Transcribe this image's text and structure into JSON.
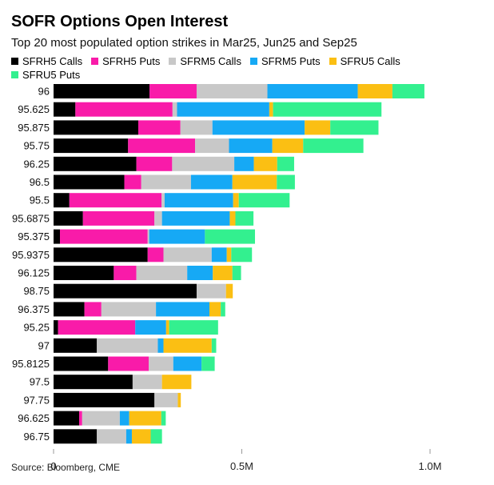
{
  "title": "SOFR Options Open Interest",
  "subtitle": "Top 20 most populated option strikes in Mar25, Jun25 and Sep25",
  "source": "Source: Bloomberg, CME",
  "chart_data": {
    "type": "bar",
    "orientation": "horizontal",
    "stacked": true,
    "legend_position": "top",
    "grid": false,
    "xlim": [
      0,
      1000000
    ],
    "x_ticks": [
      0,
      500000,
      1000000
    ],
    "x_tick_labels": [
      "0",
      "0.5M",
      "1.0M"
    ],
    "categories": [
      "96",
      "95.625",
      "95.875",
      "95.75",
      "96.25",
      "96.5",
      "95.5",
      "95.6875",
      "95.375",
      "95.9375",
      "96.125",
      "98.75",
      "96.375",
      "95.25",
      "97",
      "95.8125",
      "97.5",
      "97.75",
      "96.625",
      "96.75"
    ],
    "series": [
      {
        "name": "SFRH5 Calls",
        "color": "#000000",
        "values": [
          255000,
          58000,
          225000,
          198000,
          220000,
          188000,
          42000,
          78000,
          17000,
          250000,
          160000,
          380000,
          82000,
          12000,
          115000,
          145000,
          210000,
          268000,
          68000,
          115000
        ]
      },
      {
        "name": "SFRH5 Puts",
        "color": "#f91ba9",
        "values": [
          125000,
          258000,
          112000,
          178000,
          95000,
          45000,
          245000,
          190000,
          233000,
          42000,
          60000,
          0,
          45000,
          205000,
          0,
          108000,
          0,
          0,
          8000,
          0
        ]
      },
      {
        "name": "SFRM5 Calls",
        "color": "#c8c8c8",
        "values": [
          188000,
          12000,
          85000,
          90000,
          165000,
          132000,
          8000,
          20000,
          4000,
          128000,
          135000,
          78000,
          145000,
          0,
          162000,
          65000,
          78000,
          62000,
          100000,
          78000
        ]
      },
      {
        "name": "SFRM5 Puts",
        "color": "#16a9f5",
        "values": [
          240000,
          245000,
          245000,
          115000,
          52000,
          110000,
          182000,
          180000,
          148000,
          40000,
          68000,
          0,
          142000,
          82000,
          15000,
          75000,
          0,
          0,
          25000,
          15000
        ]
      },
      {
        "name": "SFRU5 Calls",
        "color": "#fbbf13",
        "values": [
          92000,
          10000,
          68000,
          82000,
          62000,
          118000,
          15000,
          15000,
          0,
          12000,
          52000,
          18000,
          30000,
          8000,
          128000,
          0,
          78000,
          8000,
          85000,
          50000
        ]
      },
      {
        "name": "SFRU5 Puts",
        "color": "#33f08f",
        "values": [
          85000,
          288000,
          128000,
          160000,
          45000,
          48000,
          135000,
          48000,
          133000,
          55000,
          23000,
          0,
          12000,
          130000,
          12000,
          35000,
          0,
          0,
          12000,
          30000
        ]
      }
    ]
  }
}
